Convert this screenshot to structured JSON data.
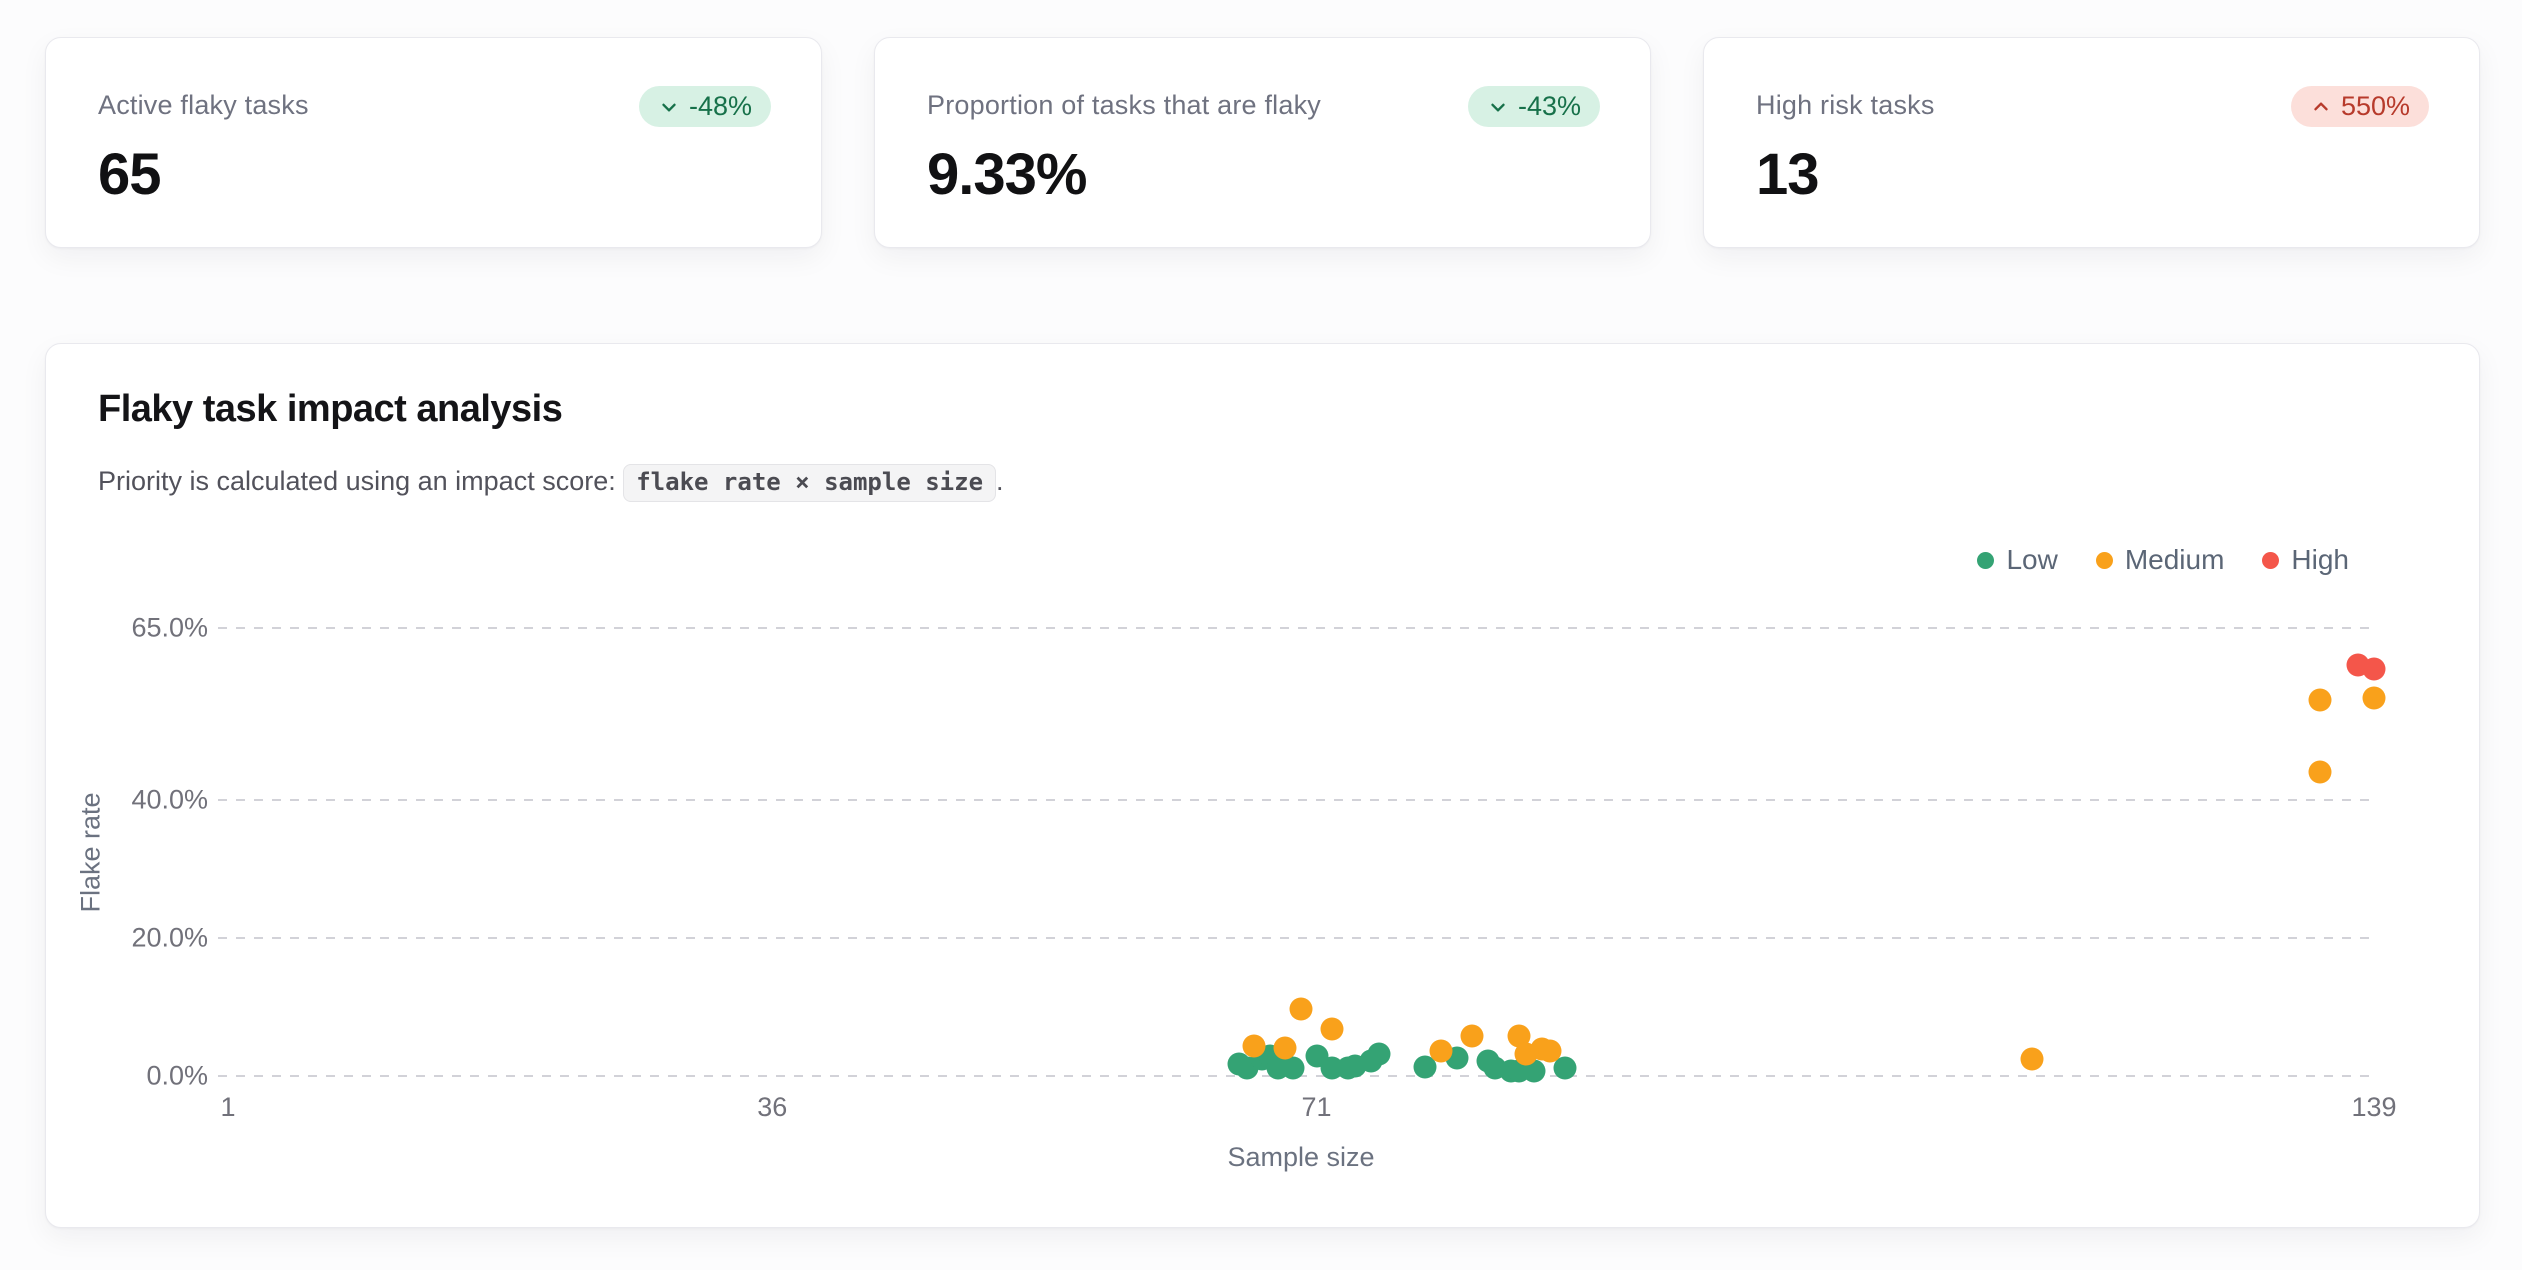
{
  "page": {
    "background": "#fcfcfd"
  },
  "stat_cards": [
    {
      "label": "Active flaky tasks",
      "value": "65",
      "badge": {
        "text": "-48%",
        "direction": "down",
        "bg": "#d7f1e4",
        "color": "#17714a"
      }
    },
    {
      "label": "Proportion of tasks that are flaky",
      "value": "9.33%",
      "badge": {
        "text": "-43%",
        "direction": "down",
        "bg": "#d7f1e4",
        "color": "#17714a"
      }
    },
    {
      "label": "High risk tasks",
      "value": "13",
      "badge": {
        "text": "550%",
        "direction": "up",
        "bg": "#fcdfda",
        "color": "#b73a2b"
      }
    }
  ],
  "chart_card": {
    "title": "Flaky task impact analysis",
    "subtitle_prefix": "Priority is calculated using an impact score: ",
    "subtitle_code": "flake rate × sample size",
    "subtitle_suffix": "."
  },
  "chart_data": {
    "type": "scatter",
    "title": "Flaky task impact analysis",
    "xlabel": "Sample size",
    "ylabel": "Flake rate",
    "xlim": [
      1,
      139
    ],
    "ylim": [
      0,
      65
    ],
    "x_ticks": [
      1,
      36,
      71,
      139
    ],
    "y_ticks": [
      0,
      20,
      40,
      65
    ],
    "y_tick_suffix_decimals": 1,
    "grid": "horizontal-dashed",
    "legend_position": "top-right",
    "series": [
      {
        "name": "Low",
        "color": "#34a374",
        "points": [
          [
            66,
            1.7
          ],
          [
            66.5,
            1.2
          ],
          [
            67.5,
            2.5
          ],
          [
            68,
            2.9
          ],
          [
            68.5,
            1.2
          ],
          [
            69.5,
            1.2
          ],
          [
            71,
            2.9
          ],
          [
            72,
            1.2
          ],
          [
            73,
            1.2
          ],
          [
            73.5,
            1.5
          ],
          [
            74.5,
            2.2
          ],
          [
            75,
            3.2
          ],
          [
            78,
            1.3
          ],
          [
            80,
            2.6
          ],
          [
            82,
            2.2
          ],
          [
            82.5,
            1.2
          ],
          [
            83.5,
            0.7
          ],
          [
            84,
            0.7
          ],
          [
            85,
            0.7
          ],
          [
            87,
            1.2
          ]
        ]
      },
      {
        "name": "Medium",
        "color": "#f9a11b",
        "points": [
          [
            67,
            4.4
          ],
          [
            69,
            4.1
          ],
          [
            70,
            9.7
          ],
          [
            72,
            6.8
          ],
          [
            79,
            3.6
          ],
          [
            81,
            5.8
          ],
          [
            84,
            5.8
          ],
          [
            84.5,
            3.2
          ],
          [
            85.5,
            3.9
          ],
          [
            86,
            3.6
          ],
          [
            117,
            2.5
          ],
          [
            135.5,
            44.1
          ],
          [
            135.5,
            54.6
          ],
          [
            139,
            54.9
          ]
        ]
      },
      {
        "name": "High",
        "color": "#f4564a",
        "points": [
          [
            138,
            59.7
          ],
          [
            139,
            59.1
          ]
        ]
      }
    ]
  }
}
